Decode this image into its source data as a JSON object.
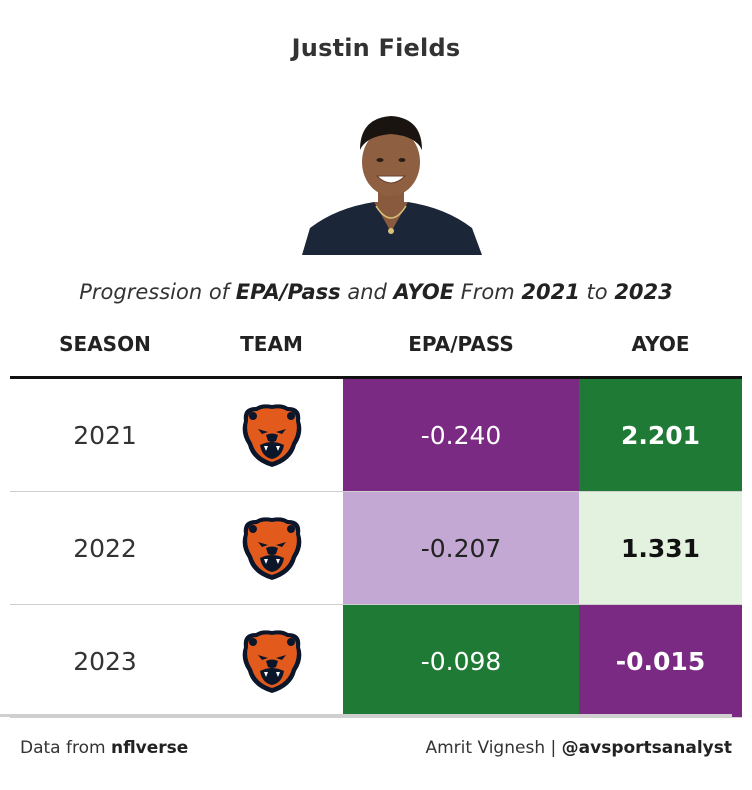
{
  "title": "Justin Fields",
  "subtitle": {
    "p1": "Progression of ",
    "metric1": "EPA/Pass",
    "p2": " and ",
    "metric2": "AYOE",
    "p3": " From ",
    "year_start": "2021",
    "p4": " to ",
    "year_end": "2023"
  },
  "headers": [
    "SEASON",
    "TEAM",
    "EPA/PASS",
    "AYOE"
  ],
  "rows": [
    {
      "season": "2021",
      "team_logo": "chicago-bears-logo",
      "epa": "-0.240",
      "ayoe": "2.201"
    },
    {
      "season": "2022",
      "team_logo": "chicago-bears-logo",
      "epa": "-0.207",
      "ayoe": "1.331"
    },
    {
      "season": "2023",
      "team_logo": "chicago-bears-logo",
      "epa": "-0.098",
      "ayoe": "-0.015"
    }
  ],
  "cell_colors": {
    "epa": [
      "#7b2a83",
      "#c3a8d3",
      "#1e7a35"
    ],
    "epa_text": [
      "#ffffff",
      "#222222",
      "#ffffff"
    ],
    "ayoe": [
      "#1e7a35",
      "#e3f1df",
      "#7b2a83"
    ],
    "ayoe_text": [
      "#ffffff",
      "#111111",
      "#ffffff"
    ]
  },
  "footer": {
    "source_prefix": "Data from ",
    "source_name": "nflverse",
    "author": "Amrit Vignesh | ",
    "handle": "@avsportsanalyst"
  },
  "chart_data": {
    "type": "table",
    "title": "Justin Fields",
    "subtitle": "Progression of EPA/Pass and AYOE From 2021 to 2023",
    "columns": [
      "SEASON",
      "TEAM",
      "EPA/PASS",
      "AYOE"
    ],
    "rows": [
      [
        2021,
        "Chicago Bears",
        -0.24,
        2.201
      ],
      [
        2022,
        "Chicago Bears",
        -0.207,
        1.331
      ],
      [
        2023,
        "Chicago Bears",
        -0.098,
        -0.015
      ]
    ]
  }
}
